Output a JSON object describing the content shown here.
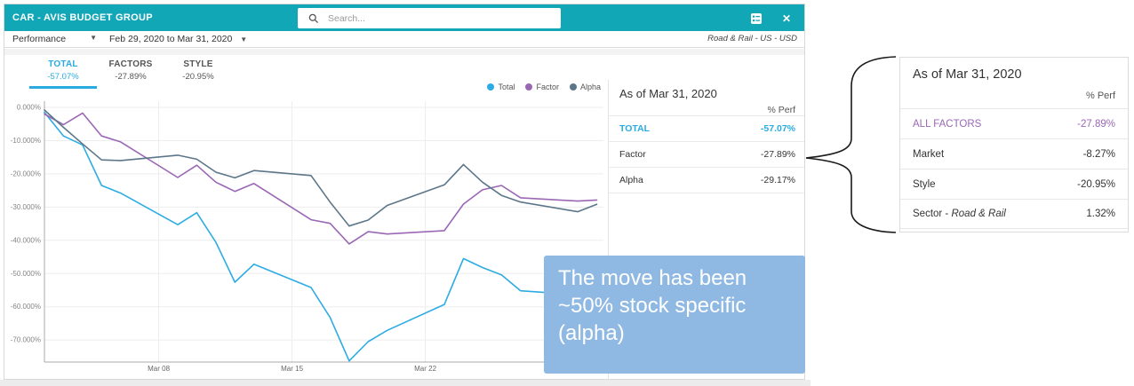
{
  "header": {
    "title": "CAR - AVIS BUDGET GROUP",
    "search_placeholder": "Search...",
    "icons": [
      "report-list-icon",
      "close-icon"
    ]
  },
  "toolbar": {
    "view_selector": "Performance",
    "date_range": "Feb 29, 2020 to Mar 31, 2020",
    "context_label": "Road & Rail - US - USD"
  },
  "tabs": [
    {
      "label": "TOTAL",
      "value": "-57.07%",
      "active": true
    },
    {
      "label": "FACTORS",
      "value": "-27.89%",
      "active": false
    },
    {
      "label": "STYLE",
      "value": "-20.95%",
      "active": false
    }
  ],
  "panel": {
    "title": "As of Mar 31, 2020",
    "column_header": "% Perf",
    "rows": [
      {
        "label": "TOTAL",
        "value": "-57.07%",
        "highlight": true
      },
      {
        "label": "Factor",
        "value": "-27.89%",
        "highlight": false
      },
      {
        "label": "Alpha",
        "value": "-29.17%",
        "highlight": false
      }
    ]
  },
  "annotation": {
    "lines": [
      "The move has been",
      "~50% stock specific",
      "(alpha)"
    ],
    "bg_color": "#8FB9E2",
    "text_color": "#FFFFFF"
  },
  "callout": {
    "title": "As of Mar 31, 2020",
    "column_header": "% Perf",
    "rows": [
      {
        "label": "ALL FACTORS",
        "value": "-27.89%",
        "highlight": true
      },
      {
        "label": "Market",
        "value": "-8.27%",
        "highlight": false
      },
      {
        "label": "Style",
        "value": "-20.95%",
        "highlight": false
      },
      {
        "label_prefix": "Sector - ",
        "label_italic": "Road & Rail",
        "value": "1.32%",
        "highlight": false
      }
    ]
  },
  "colors": {
    "header_teal": "#12A7B7",
    "active_blue": "#29ABE2",
    "factor_purple": "#9A67B5",
    "alpha_slate": "#5C7689",
    "annotation_blue": "#8FB9E2"
  },
  "chart_data": {
    "type": "line",
    "title": "",
    "x_dates": [
      "Mar 02",
      "Mar 03",
      "Mar 04",
      "Mar 05",
      "Mar 06",
      "Mar 09",
      "Mar 10",
      "Mar 11",
      "Mar 12",
      "Mar 13",
      "Mar 16",
      "Mar 17",
      "Mar 18",
      "Mar 19",
      "Mar 20",
      "Mar 23",
      "Mar 24",
      "Mar 25",
      "Mar 26",
      "Mar 27",
      "Mar 30",
      "Mar 31"
    ],
    "x_day_offsets": [
      0,
      1,
      2,
      3,
      4,
      7,
      8,
      9,
      10,
      11,
      14,
      15,
      16,
      17,
      18,
      21,
      22,
      23,
      24,
      25,
      28,
      29
    ],
    "x_tick_labels": [
      "Mar 08",
      "Mar 15",
      "Mar 22"
    ],
    "x_tick_day_offsets": [
      6,
      13,
      20
    ],
    "y_ticks": [
      0,
      -10,
      -20,
      -30,
      -40,
      -50,
      -60,
      -70
    ],
    "y_tick_labels": [
      "0.000%",
      "-10.000%",
      "-20.000%",
      "-30.000%",
      "-40.000%",
      "-50.000%",
      "-60.000%",
      "-70.000%"
    ],
    "ylim": [
      -76.6,
      0
    ],
    "grid": true,
    "legend_position": "top-right",
    "series": [
      {
        "name": "Total",
        "color": "#2CACE3",
        "values": [
          -1.5,
          -8.6,
          -11.3,
          -23.5,
          -25.8,
          -35.3,
          -31.7,
          -40.6,
          -52.6,
          -47.2,
          -54.2,
          -63.2,
          -76.3,
          -70.5,
          -67.1,
          -59.3,
          -45.5,
          -48.2,
          -50.4,
          -55.2,
          -56.4,
          -57.07
        ]
      },
      {
        "name": "Factor",
        "color": "#9A67B5",
        "values": [
          -2.0,
          -5.2,
          -1.7,
          -8.6,
          -10.4,
          -21.1,
          -17.4,
          -22.5,
          -25.3,
          -22.9,
          -33.8,
          -34.9,
          -41.1,
          -37.4,
          -38.1,
          -37.1,
          -29.1,
          -24.8,
          -23.5,
          -27.2,
          -28.2,
          -27.89
        ]
      },
      {
        "name": "Alpha",
        "color": "#5C7689",
        "values": [
          -0.8,
          -6.0,
          -11.0,
          -15.8,
          -16.0,
          -14.4,
          -15.6,
          -19.5,
          -21.2,
          -19.0,
          -20.5,
          -28.5,
          -35.7,
          -33.9,
          -29.5,
          -23.3,
          -17.2,
          -22.5,
          -26.5,
          -28.5,
          -31.4,
          -29.17
        ]
      }
    ]
  }
}
